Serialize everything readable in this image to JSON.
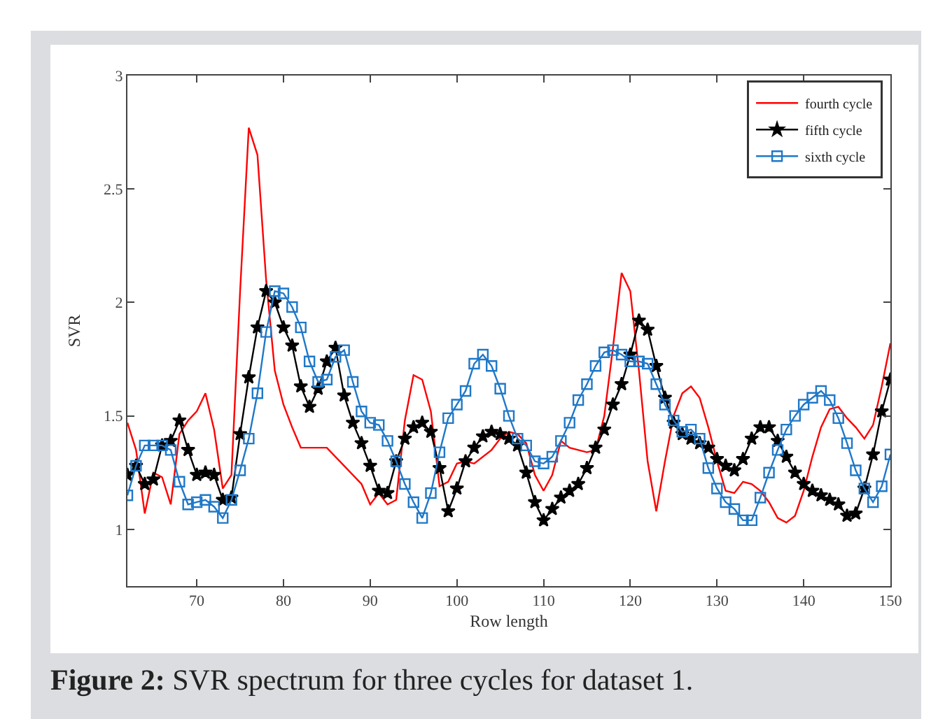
{
  "chart_data": {
    "type": "line",
    "xlabel": "Row length",
    "ylabel": "SVR",
    "xlim": [
      62,
      150
    ],
    "xticks": [
      70,
      80,
      90,
      100,
      110,
      120,
      130,
      140,
      150
    ],
    "ylim": [
      0.75,
      3
    ],
    "yticks": [
      1,
      1.5,
      2,
      2.5,
      3
    ],
    "grid": false,
    "legend": "top right",
    "line_style": "solid",
    "annotations": [
      "Figure 2: SVR spectrum for three cycles for dataset 1."
    ],
    "series": [
      {
        "name": "fourth cycle",
        "color": "#ff0000",
        "marker": "none",
        "x": [
          62,
          63,
          64,
          65,
          66,
          67,
          68,
          69,
          70,
          71,
          72,
          73,
          74,
          75,
          76,
          77,
          78,
          79,
          80,
          81,
          82,
          85,
          89,
          90,
          91,
          92,
          93,
          94,
          95,
          96,
          97,
          98,
          99,
          100,
          101,
          102,
          104,
          105,
          106,
          107,
          108,
          109,
          110,
          111,
          112,
          113,
          115,
          116,
          117,
          118,
          119,
          120,
          121,
          122,
          123,
          124,
          125,
          126,
          127,
          128,
          129,
          130,
          131,
          132,
          133,
          134,
          135,
          136,
          137,
          138,
          139,
          140,
          141,
          142,
          143,
          144,
          145,
          146,
          147,
          148,
          149,
          150
        ],
        "values": [
          1.47,
          1.35,
          1.07,
          1.25,
          1.23,
          1.11,
          1.42,
          1.48,
          1.52,
          1.6,
          1.44,
          1.18,
          1.24,
          2.05,
          2.77,
          2.65,
          2.1,
          1.7,
          1.55,
          1.45,
          1.36,
          1.36,
          1.2,
          1.11,
          1.16,
          1.11,
          1.13,
          1.48,
          1.68,
          1.66,
          1.52,
          1.19,
          1.21,
          1.29,
          1.3,
          1.29,
          1.35,
          1.4,
          1.43,
          1.42,
          1.38,
          1.24,
          1.17,
          1.24,
          1.39,
          1.36,
          1.34,
          1.35,
          1.5,
          1.8,
          2.13,
          2.05,
          1.7,
          1.3,
          1.08,
          1.3,
          1.5,
          1.6,
          1.63,
          1.58,
          1.45,
          1.3,
          1.17,
          1.16,
          1.21,
          1.2,
          1.17,
          1.12,
          1.05,
          1.03,
          1.06,
          1.17,
          1.32,
          1.45,
          1.53,
          1.54,
          1.49,
          1.45,
          1.4,
          1.46,
          1.63,
          1.82
        ]
      },
      {
        "name": "fifth cycle",
        "color": "#000000",
        "marker": "star",
        "x": [
          62,
          63,
          64,
          65,
          66,
          67,
          68,
          69,
          70,
          71,
          72,
          73,
          74,
          75,
          76,
          77,
          78,
          79,
          80,
          81,
          82,
          83,
          84,
          85,
          86,
          87,
          88,
          89,
          90,
          91,
          92,
          93,
          94,
          95,
          96,
          97,
          98,
          99,
          100,
          101,
          102,
          103,
          104,
          105,
          106,
          107,
          108,
          109,
          110,
          111,
          112,
          113,
          114,
          115,
          116,
          117,
          118,
          119,
          120,
          121,
          122,
          123,
          124,
          125,
          126,
          127,
          128,
          129,
          130,
          131,
          132,
          133,
          134,
          135,
          136,
          137,
          138,
          139,
          140,
          141,
          142,
          143,
          144,
          145,
          146,
          147,
          148,
          149,
          150
        ],
        "values": [
          1.24,
          1.28,
          1.2,
          1.22,
          1.37,
          1.39,
          1.48,
          1.35,
          1.24,
          1.25,
          1.24,
          1.13,
          1.14,
          1.42,
          1.67,
          1.89,
          2.05,
          2.0,
          1.89,
          1.81,
          1.63,
          1.54,
          1.62,
          1.74,
          1.8,
          1.59,
          1.47,
          1.38,
          1.28,
          1.17,
          1.16,
          1.3,
          1.4,
          1.45,
          1.47,
          1.43,
          1.27,
          1.08,
          1.18,
          1.3,
          1.36,
          1.41,
          1.43,
          1.42,
          1.4,
          1.37,
          1.25,
          1.12,
          1.04,
          1.09,
          1.14,
          1.17,
          1.2,
          1.27,
          1.36,
          1.44,
          1.55,
          1.64,
          1.77,
          1.92,
          1.88,
          1.72,
          1.58,
          1.47,
          1.42,
          1.4,
          1.38,
          1.36,
          1.31,
          1.28,
          1.26,
          1.31,
          1.4,
          1.45,
          1.45,
          1.39,
          1.32,
          1.25,
          1.2,
          1.17,
          1.15,
          1.13,
          1.11,
          1.06,
          1.07,
          1.18,
          1.33,
          1.52,
          1.66
        ]
      },
      {
        "name": "sixth cycle",
        "color": "#1f78c8",
        "marker": "square",
        "x": [
          62,
          63,
          64,
          65,
          66,
          67,
          68,
          69,
          70,
          71,
          72,
          73,
          74,
          75,
          76,
          77,
          78,
          79,
          80,
          81,
          82,
          83,
          84,
          85,
          86,
          87,
          88,
          89,
          90,
          91,
          92,
          93,
          94,
          95,
          96,
          97,
          98,
          99,
          100,
          101,
          102,
          103,
          104,
          105,
          106,
          107,
          108,
          109,
          110,
          111,
          112,
          113,
          114,
          115,
          116,
          117,
          118,
          119,
          120,
          121,
          122,
          123,
          124,
          125,
          126,
          127,
          128,
          129,
          130,
          131,
          132,
          133,
          134,
          135,
          136,
          137,
          138,
          139,
          140,
          141,
          142,
          143,
          144,
          145,
          146,
          147,
          148,
          149,
          150
        ],
        "values": [
          1.15,
          1.28,
          1.37,
          1.37,
          1.37,
          1.35,
          1.21,
          1.11,
          1.12,
          1.13,
          1.1,
          1.05,
          1.13,
          1.26,
          1.4,
          1.6,
          1.87,
          2.05,
          2.04,
          1.98,
          1.89,
          1.74,
          1.65,
          1.66,
          1.76,
          1.79,
          1.65,
          1.52,
          1.47,
          1.46,
          1.39,
          1.3,
          1.2,
          1.12,
          1.05,
          1.16,
          1.34,
          1.49,
          1.55,
          1.61,
          1.73,
          1.77,
          1.72,
          1.62,
          1.5,
          1.4,
          1.37,
          1.3,
          1.29,
          1.32,
          1.39,
          1.47,
          1.57,
          1.64,
          1.72,
          1.78,
          1.79,
          1.77,
          1.74,
          1.74,
          1.73,
          1.64,
          1.55,
          1.48,
          1.43,
          1.44,
          1.4,
          1.27,
          1.18,
          1.12,
          1.09,
          1.04,
          1.04,
          1.14,
          1.25,
          1.35,
          1.44,
          1.5,
          1.55,
          1.58,
          1.61,
          1.57,
          1.49,
          1.38,
          1.26,
          1.18,
          1.12,
          1.19,
          1.33
        ]
      }
    ]
  }
}
